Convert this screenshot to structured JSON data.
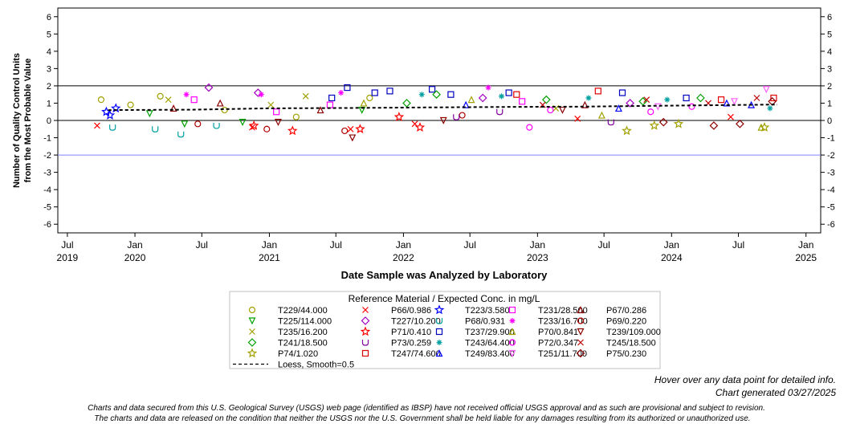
{
  "chart_data": {
    "type": "scatter",
    "xlabel": "Date Sample was Analyzed by Laboratory",
    "ylabel_lines": [
      "Number of Quality Control Units",
      "from the Most Probable Value"
    ],
    "ylim": [
      -6.5,
      6.5
    ],
    "y_ticks": [
      6,
      5,
      4,
      3,
      2,
      1,
      0,
      -1,
      -2,
      -3,
      -4,
      -5,
      -6
    ],
    "x_range": [
      "2019-06-05",
      "2025-02-10"
    ],
    "x_ticks": [
      {
        "date": "2019-07-01",
        "month": "Jul",
        "year": "2019"
      },
      {
        "date": "2020-01-01",
        "month": "Jan",
        "year": "2020"
      },
      {
        "date": "2020-07-01",
        "month": "Jul",
        "year": ""
      },
      {
        "date": "2021-01-01",
        "month": "Jan",
        "year": "2021"
      },
      {
        "date": "2021-07-01",
        "month": "Jul",
        "year": ""
      },
      {
        "date": "2022-01-01",
        "month": "Jan",
        "year": "2022"
      },
      {
        "date": "2022-07-01",
        "month": "Jul",
        "year": ""
      },
      {
        "date": "2023-01-01",
        "month": "Jan",
        "year": "2023"
      },
      {
        "date": "2023-07-01",
        "month": "Jul",
        "year": ""
      },
      {
        "date": "2024-01-01",
        "month": "Jan",
        "year": "2024"
      },
      {
        "date": "2024-07-01",
        "month": "Jul",
        "year": ""
      },
      {
        "date": "2025-01-01",
        "month": "Jan",
        "year": "2025"
      }
    ],
    "reference_lines": [
      {
        "y": 2,
        "color": "#000000"
      },
      {
        "y": 0,
        "color": "#000000"
      },
      {
        "y": -2,
        "color": "#8080ff"
      }
    ],
    "loess": {
      "name": "Loess, Smooth=0.5",
      "x": [
        "2019-10-20",
        "2020-06-01",
        "2021-01-01",
        "2021-08-01",
        "2022-03-01",
        "2022-10-01",
        "2023-05-01",
        "2023-12-01",
        "2024-05-01",
        "2024-10-15"
      ],
      "y": [
        0.6,
        0.62,
        0.7,
        0.72,
        0.75,
        0.78,
        0.8,
        0.85,
        0.88,
        0.92
      ]
    },
    "legend_title": "Reference Material / Expected Conc. in mg/L",
    "series": [
      {
        "name": "T229/44.000",
        "marker": "circle",
        "color": "#a0a000"
      },
      {
        "name": "P66/0.986",
        "marker": "x",
        "color": "#ff0000"
      },
      {
        "name": "T223/3.580",
        "marker": "star",
        "color": "#0000ff"
      },
      {
        "name": "T231/28.500",
        "marker": "square",
        "color": "#ff00ff"
      },
      {
        "name": "P67/0.286",
        "marker": "triangle-up",
        "color": "#8b0000"
      },
      {
        "name": "T225/114.000",
        "marker": "triangle-down",
        "color": "#00a000"
      },
      {
        "name": "T227/10.200",
        "marker": "diamond",
        "color": "#a000c0"
      },
      {
        "name": "P68/0.931",
        "marker": "u-shape",
        "color": "#00a0a0"
      },
      {
        "name": "T233/16.700",
        "marker": "asterisk",
        "color": "#ff00ff"
      },
      {
        "name": "P69/0.220",
        "marker": "circle",
        "color": "#b00000"
      },
      {
        "name": "T235/16.200",
        "marker": "x",
        "color": "#a0a000"
      },
      {
        "name": "P71/0.410",
        "marker": "star",
        "color": "#ff0000"
      },
      {
        "name": "T237/29.900",
        "marker": "square",
        "color": "#0000c0"
      },
      {
        "name": "P70/0.841",
        "marker": "triangle-up",
        "color": "#a0a000"
      },
      {
        "name": "T239/109.000",
        "marker": "triangle-down",
        "color": "#8b0000"
      },
      {
        "name": "T241/18.500",
        "marker": "diamond",
        "color": "#00a000"
      },
      {
        "name": "P73/0.259",
        "marker": "u-shape",
        "color": "#8000a0"
      },
      {
        "name": "T243/64.400",
        "marker": "asterisk",
        "color": "#00a0a0"
      },
      {
        "name": "P72/0.347",
        "marker": "circle",
        "color": "#ff00ff"
      },
      {
        "name": "T245/18.500",
        "marker": "x",
        "color": "#c00000"
      },
      {
        "name": "P74/1.020",
        "marker": "star",
        "color": "#a0a000"
      },
      {
        "name": "T247/74.600",
        "marker": "square",
        "color": "#e00000"
      },
      {
        "name": "T249/83.400",
        "marker": "triangle-up",
        "color": "#0000ff"
      },
      {
        "name": "T251/11.700",
        "marker": "triangle-down",
        "color": "#ff60ff"
      },
      {
        "name": "P75/0.230",
        "marker": "diamond",
        "color": "#8b0000"
      }
    ],
    "points": [
      {
        "s": 0,
        "x": "2019-10-01",
        "y": 1.2
      },
      {
        "s": 0,
        "x": "2019-12-20",
        "y": 0.9
      },
      {
        "s": 0,
        "x": "2020-03-10",
        "y": 1.4
      },
      {
        "s": 0,
        "x": "2020-09-01",
        "y": 0.6
      },
      {
        "s": 0,
        "x": "2021-03-15",
        "y": 0.2
      },
      {
        "s": 0,
        "x": "2021-10-01",
        "y": 1.3
      },
      {
        "s": 1,
        "x": "2019-09-20",
        "y": -0.3
      },
      {
        "s": 1,
        "x": "2020-11-15",
        "y": -0.4
      },
      {
        "s": 1,
        "x": "2021-08-10",
        "y": -0.5
      },
      {
        "s": 1,
        "x": "2022-02-01",
        "y": -0.2
      },
      {
        "s": 1,
        "x": "2023-04-20",
        "y": 0.1
      },
      {
        "s": 1,
        "x": "2024-06-10",
        "y": 0.2
      },
      {
        "s": 2,
        "x": "2019-10-15",
        "y": 0.5
      },
      {
        "s": 2,
        "x": "2019-10-25",
        "y": 0.3
      },
      {
        "s": 2,
        "x": "2019-11-10",
        "y": 0.7
      },
      {
        "s": 3,
        "x": "2020-06-10",
        "y": 1.2
      },
      {
        "s": 3,
        "x": "2021-01-20",
        "y": 0.5
      },
      {
        "s": 3,
        "x": "2021-06-15",
        "y": 0.9
      },
      {
        "s": 3,
        "x": "2022-11-20",
        "y": 1.1
      },
      {
        "s": 4,
        "x": "2020-04-15",
        "y": 0.7
      },
      {
        "s": 4,
        "x": "2020-08-20",
        "y": 1.0
      },
      {
        "s": 4,
        "x": "2021-05-20",
        "y": 0.6
      },
      {
        "s": 4,
        "x": "2023-05-10",
        "y": 0.9
      },
      {
        "s": 5,
        "x": "2020-02-10",
        "y": 0.4
      },
      {
        "s": 5,
        "x": "2020-05-15",
        "y": -0.2
      },
      {
        "s": 5,
        "x": "2020-10-20",
        "y": -0.1
      },
      {
        "s": 5,
        "x": "2021-09-10",
        "y": 0.6
      },
      {
        "s": 6,
        "x": "2020-07-20",
        "y": 1.9
      },
      {
        "s": 6,
        "x": "2020-12-01",
        "y": 1.6
      },
      {
        "s": 6,
        "x": "2022-08-05",
        "y": 1.3
      },
      {
        "s": 6,
        "x": "2023-09-10",
        "y": 1.0
      },
      {
        "s": 7,
        "x": "2019-11-01",
        "y": -0.4
      },
      {
        "s": 7,
        "x": "2020-02-25",
        "y": -0.5
      },
      {
        "s": 7,
        "x": "2020-05-05",
        "y": -0.8
      },
      {
        "s": 7,
        "x": "2020-08-10",
        "y": -0.3
      },
      {
        "s": 8,
        "x": "2020-05-20",
        "y": 1.5
      },
      {
        "s": 8,
        "x": "2020-12-10",
        "y": 1.5
      },
      {
        "s": 8,
        "x": "2021-07-15",
        "y": 1.6
      },
      {
        "s": 8,
        "x": "2022-08-20",
        "y": 1.9
      },
      {
        "s": 9,
        "x": "2020-06-20",
        "y": -0.2
      },
      {
        "s": 9,
        "x": "2020-12-25",
        "y": -0.5
      },
      {
        "s": 9,
        "x": "2021-07-25",
        "y": -0.6
      },
      {
        "s": 9,
        "x": "2022-06-10",
        "y": 0.3
      },
      {
        "s": 10,
        "x": "2020-04-01",
        "y": 1.2
      },
      {
        "s": 10,
        "x": "2021-01-05",
        "y": 0.9
      },
      {
        "s": 10,
        "x": "2021-04-10",
        "y": 1.4
      },
      {
        "s": 10,
        "x": "2023-02-20",
        "y": 0.7
      },
      {
        "s": 11,
        "x": "2020-11-20",
        "y": -0.3
      },
      {
        "s": 11,
        "x": "2021-03-05",
        "y": -0.6
      },
      {
        "s": 11,
        "x": "2021-09-05",
        "y": -0.5
      },
      {
        "s": 11,
        "x": "2021-12-20",
        "y": 0.2
      },
      {
        "s": 11,
        "x": "2022-02-15",
        "y": -0.4
      },
      {
        "s": 12,
        "x": "2021-06-20",
        "y": 1.3
      },
      {
        "s": 12,
        "x": "2021-08-01",
        "y": 1.9
      },
      {
        "s": 12,
        "x": "2021-10-15",
        "y": 1.6
      },
      {
        "s": 12,
        "x": "2021-11-25",
        "y": 1.7
      },
      {
        "s": 12,
        "x": "2022-03-20",
        "y": 1.8
      },
      {
        "s": 12,
        "x": "2022-05-10",
        "y": 1.5
      },
      {
        "s": 12,
        "x": "2022-10-15",
        "y": 1.6
      },
      {
        "s": 12,
        "x": "2023-08-20",
        "y": 1.6
      },
      {
        "s": 12,
        "x": "2024-02-10",
        "y": 1.3
      },
      {
        "s": 13,
        "x": "2021-09-15",
        "y": 1.0
      },
      {
        "s": 13,
        "x": "2022-07-05",
        "y": 1.2
      },
      {
        "s": 13,
        "x": "2023-06-25",
        "y": 0.3
      },
      {
        "s": 13,
        "x": "2024-09-01",
        "y": -0.4
      },
      {
        "s": 14,
        "x": "2021-01-25",
        "y": -0.1
      },
      {
        "s": 14,
        "x": "2021-08-15",
        "y": -1.0
      },
      {
        "s": 14,
        "x": "2022-04-20",
        "y": 0.0
      },
      {
        "s": 14,
        "x": "2023-03-10",
        "y": 0.6
      },
      {
        "s": 15,
        "x": "2022-01-10",
        "y": 1.0
      },
      {
        "s": 15,
        "x": "2022-04-01",
        "y": 1.5
      },
      {
        "s": 15,
        "x": "2023-01-25",
        "y": 1.2
      },
      {
        "s": 15,
        "x": "2023-10-15",
        "y": 1.1
      },
      {
        "s": 15,
        "x": "2024-03-20",
        "y": 1.3
      },
      {
        "s": 16,
        "x": "2022-05-25",
        "y": 0.2
      },
      {
        "s": 16,
        "x": "2022-09-20",
        "y": 0.5
      },
      {
        "s": 16,
        "x": "2023-07-20",
        "y": -0.1
      },
      {
        "s": 17,
        "x": "2022-02-20",
        "y": 1.5
      },
      {
        "s": 17,
        "x": "2022-09-25",
        "y": 1.4
      },
      {
        "s": 17,
        "x": "2023-05-20",
        "y": 1.3
      },
      {
        "s": 17,
        "x": "2023-12-20",
        "y": 1.2
      },
      {
        "s": 17,
        "x": "2024-09-25",
        "y": 0.7
      },
      {
        "s": 18,
        "x": "2022-12-10",
        "y": -0.4
      },
      {
        "s": 18,
        "x": "2023-02-05",
        "y": 0.6
      },
      {
        "s": 18,
        "x": "2023-11-05",
        "y": 0.5
      },
      {
        "s": 18,
        "x": "2024-02-25",
        "y": 0.8
      },
      {
        "s": 19,
        "x": "2023-01-15",
        "y": 0.9
      },
      {
        "s": 19,
        "x": "2023-10-25",
        "y": 1.2
      },
      {
        "s": 19,
        "x": "2024-04-10",
        "y": 1.0
      },
      {
        "s": 19,
        "x": "2024-08-20",
        "y": 1.3
      },
      {
        "s": 20,
        "x": "2023-09-01",
        "y": -0.6
      },
      {
        "s": 20,
        "x": "2023-11-15",
        "y": -0.3
      },
      {
        "s": 20,
        "x": "2024-01-20",
        "y": -0.2
      },
      {
        "s": 20,
        "x": "2024-09-10",
        "y": -0.4
      },
      {
        "s": 21,
        "x": "2022-11-05",
        "y": 1.5
      },
      {
        "s": 21,
        "x": "2023-06-15",
        "y": 1.7
      },
      {
        "s": 21,
        "x": "2024-05-15",
        "y": 1.2
      },
      {
        "s": 21,
        "x": "2024-10-05",
        "y": 1.3
      },
      {
        "s": 22,
        "x": "2022-06-20",
        "y": 0.9
      },
      {
        "s": 22,
        "x": "2023-08-10",
        "y": 0.7
      },
      {
        "s": 22,
        "x": "2024-05-30",
        "y": 1.0
      },
      {
        "s": 22,
        "x": "2024-08-05",
        "y": 0.9
      },
      {
        "s": 23,
        "x": "2023-11-25",
        "y": 0.8
      },
      {
        "s": 23,
        "x": "2024-06-20",
        "y": 1.1
      },
      {
        "s": 23,
        "x": "2024-09-15",
        "y": 1.8
      },
      {
        "s": 24,
        "x": "2023-12-10",
        "y": -0.1
      },
      {
        "s": 24,
        "x": "2024-04-25",
        "y": -0.3
      },
      {
        "s": 24,
        "x": "2024-07-05",
        "y": -0.2
      },
      {
        "s": 24,
        "x": "2024-10-01",
        "y": 1.1
      }
    ]
  },
  "footer": {
    "hover_note": "Hover over any data point for detailed info.",
    "generated": "Chart generated 03/27/2025",
    "disclaimer_line1": "Charts and data secured from this U.S. Geological Survey (USGS) web page (identified as IBSP) have not received official USGS approval and as such are provisional and subject to revision.",
    "disclaimer_line2": "The charts and data are released on the condition that neither the USGS nor the U.S. Government shall be held liable for any damages resulting from its authorized or unauthorized use."
  }
}
